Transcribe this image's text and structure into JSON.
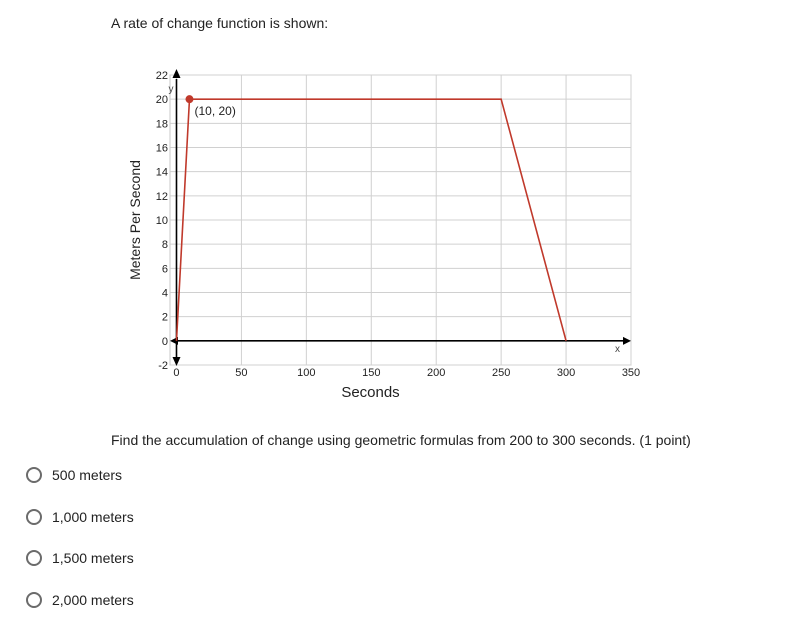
{
  "prompt": "A rate of change function is shown:",
  "question": "Find the accumulation of change using geometric formulas from 200 to 300 seconds. (1 point)",
  "options": [
    "500 meters",
    "1,000 meters",
    "1,500 meters",
    "2,000 meters"
  ],
  "chart_data": {
    "type": "line",
    "xlabel": "Seconds",
    "ylabel": "Meters Per Second",
    "x_axis_letter": "x",
    "y_axis_letter": "y",
    "xlim": [
      -5,
      350
    ],
    "ylim": [
      -2,
      22
    ],
    "x_ticks": [
      0,
      50,
      100,
      150,
      200,
      250,
      300,
      350
    ],
    "y_ticks": [
      -2,
      0,
      2,
      4,
      6,
      8,
      10,
      12,
      14,
      16,
      18,
      20,
      22
    ],
    "grid": true,
    "series": [
      {
        "points": [
          [
            0,
            0
          ],
          [
            10,
            20
          ],
          [
            250,
            20
          ],
          [
            300,
            0
          ]
        ],
        "color": "#c0392b"
      }
    ],
    "highlight_point": {
      "x": 10,
      "y": 20,
      "label": "(10, 20)"
    }
  }
}
